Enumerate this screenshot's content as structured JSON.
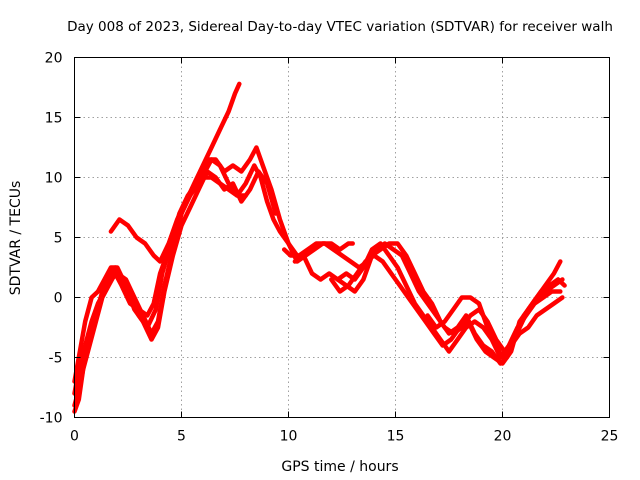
{
  "chart_data": {
    "type": "line",
    "title": "Day 008 of 2023, Sidereal Day-to-day VTEC variation (SDTVAR) for receiver walh",
    "xlabel": "GPS time / hours",
    "ylabel": "SDTVAR / TECUs",
    "xlim": [
      0,
      25
    ],
    "ylim": [
      -10,
      20
    ],
    "x_ticks": [
      0,
      5,
      10,
      15,
      20,
      25
    ],
    "y_ticks": [
      -10,
      -5,
      0,
      5,
      10,
      15,
      20
    ],
    "grid": true,
    "color": "#ff0000",
    "series": [
      {
        "name": "trace-1",
        "points": [
          [
            0.0,
            -9.5
          ],
          [
            0.2,
            -8.5
          ],
          [
            0.4,
            -6.0
          ],
          [
            0.7,
            -4.0
          ],
          [
            1.0,
            -2.0
          ],
          [
            1.3,
            0.0
          ],
          [
            1.6,
            1.0
          ],
          [
            1.9,
            2.0
          ],
          [
            2.2,
            1.0
          ],
          [
            2.6,
            -0.5
          ],
          [
            3.0,
            -1.0
          ],
          [
            3.4,
            -1.5
          ],
          [
            3.7,
            -0.5
          ],
          [
            4.0,
            2.0
          ],
          [
            4.4,
            4.0
          ],
          [
            4.8,
            6.0
          ],
          [
            5.2,
            8.0
          ],
          [
            5.6,
            9.5
          ],
          [
            6.0,
            11.0
          ],
          [
            6.4,
            12.5
          ],
          [
            6.8,
            14.0
          ],
          [
            7.2,
            15.5
          ],
          [
            7.5,
            17.0
          ],
          [
            7.7,
            17.8
          ]
        ]
      },
      {
        "name": "trace-2",
        "points": [
          [
            0.0,
            -9.0
          ],
          [
            0.3,
            -7.0
          ],
          [
            0.6,
            -4.0
          ],
          [
            1.0,
            -1.5
          ],
          [
            1.3,
            0.5
          ],
          [
            1.6,
            1.5
          ],
          [
            1.9,
            2.5
          ],
          [
            2.2,
            1.5
          ],
          [
            2.6,
            0.0
          ],
          [
            3.0,
            -1.5
          ],
          [
            3.4,
            -2.5
          ],
          [
            3.8,
            -1.0
          ],
          [
            4.1,
            2.0
          ],
          [
            4.5,
            4.5
          ],
          [
            4.9,
            7.0
          ],
          [
            5.3,
            8.5
          ],
          [
            5.7,
            9.5
          ],
          [
            6.1,
            10.5
          ],
          [
            6.4,
            11.5
          ],
          [
            6.8,
            11.0
          ],
          [
            7.2,
            9.5
          ],
          [
            7.6,
            8.5
          ],
          [
            8.0,
            9.5
          ],
          [
            8.4,
            11.0
          ],
          [
            8.7,
            10.0
          ],
          [
            9.0,
            8.0
          ],
          [
            9.3,
            6.5
          ],
          [
            9.6,
            5.5
          ],
          [
            10.0,
            4.5
          ],
          [
            10.4,
            3.0
          ],
          [
            10.8,
            3.5
          ],
          [
            11.2,
            4.0
          ],
          [
            11.6,
            4.5
          ],
          [
            12.0,
            4.5
          ],
          [
            12.4,
            4.0
          ],
          [
            12.8,
            4.5
          ],
          [
            13.0,
            4.5
          ]
        ]
      },
      {
        "name": "trace-3",
        "points": [
          [
            0.0,
            -8.0
          ],
          [
            0.2,
            -6.0
          ],
          [
            0.5,
            -4.0
          ],
          [
            0.8,
            -2.0
          ],
          [
            1.1,
            -0.5
          ],
          [
            1.4,
            0.5
          ],
          [
            1.7,
            1.5
          ],
          [
            2.0,
            2.0
          ],
          [
            2.4,
            1.5
          ],
          [
            2.8,
            0.0
          ],
          [
            3.2,
            -1.5
          ],
          [
            3.6,
            -3.0
          ],
          [
            3.9,
            -2.0
          ],
          [
            4.2,
            1.0
          ],
          [
            4.6,
            4.0
          ],
          [
            5.0,
            7.0
          ],
          [
            5.4,
            8.5
          ],
          [
            5.8,
            10.0
          ],
          [
            6.2,
            11.5
          ],
          [
            6.6,
            11.5
          ],
          [
            7.0,
            10.5
          ],
          [
            7.4,
            11.0
          ],
          [
            7.8,
            10.5
          ],
          [
            8.2,
            11.5
          ],
          [
            8.5,
            12.5
          ],
          [
            8.8,
            11.0
          ],
          [
            9.2,
            9.0
          ],
          [
            9.6,
            6.5
          ],
          [
            10.0,
            4.5
          ],
          [
            10.4,
            3.5
          ]
        ]
      },
      {
        "name": "trace-4",
        "points": [
          [
            0.0,
            -7.0
          ],
          [
            0.2,
            -5.0
          ],
          [
            0.5,
            -2.0
          ],
          [
            0.8,
            0.0
          ],
          [
            1.1,
            0.5
          ],
          [
            1.4,
            1.5
          ],
          [
            1.7,
            2.5
          ],
          [
            2.0,
            2.5
          ],
          [
            2.4,
            1.0
          ],
          [
            2.8,
            -1.0
          ],
          [
            3.2,
            -2.0
          ],
          [
            3.6,
            -3.5
          ],
          [
            3.9,
            -2.5
          ],
          [
            4.2,
            0.5
          ],
          [
            4.6,
            3.5
          ],
          [
            5.0,
            6.0
          ],
          [
            5.4,
            7.5
          ],
          [
            5.8,
            9.0
          ],
          [
            6.2,
            10.5
          ],
          [
            6.6,
            10.0
          ],
          [
            7.0,
            9.0
          ],
          [
            7.4,
            9.5
          ],
          [
            7.8,
            8.0
          ],
          [
            8.2,
            9.0
          ],
          [
            8.6,
            10.5
          ],
          [
            9.0,
            9.5
          ],
          [
            9.4,
            7.0
          ]
        ]
      },
      {
        "name": "trace-5",
        "points": [
          [
            1.7,
            5.5
          ],
          [
            2.1,
            6.5
          ],
          [
            2.5,
            6.0
          ],
          [
            2.9,
            5.0
          ],
          [
            3.3,
            4.5
          ],
          [
            3.7,
            3.5
          ],
          [
            4.0,
            3.0
          ],
          [
            4.4,
            4.5
          ],
          [
            4.8,
            6.5
          ],
          [
            5.2,
            8.0
          ],
          [
            5.6,
            9.0
          ],
          [
            6.0,
            10.0
          ],
          [
            6.4,
            10.0
          ],
          [
            6.8,
            9.5
          ],
          [
            7.2,
            9.0
          ],
          [
            7.6,
            8.5
          ],
          [
            8.0,
            8.5
          ]
        ]
      },
      {
        "name": "trace-6",
        "points": [
          [
            9.8,
            4.0
          ],
          [
            10.1,
            3.5
          ],
          [
            10.5,
            3.5
          ],
          [
            10.9,
            4.0
          ],
          [
            11.3,
            4.5
          ],
          [
            11.7,
            4.5
          ],
          [
            12.1,
            4.0
          ],
          [
            12.5,
            3.5
          ],
          [
            12.9,
            3.0
          ],
          [
            13.3,
            2.5
          ],
          [
            13.7,
            3.0
          ],
          [
            14.1,
            4.0
          ],
          [
            14.5,
            4.5
          ],
          [
            14.9,
            4.0
          ],
          [
            15.3,
            3.5
          ],
          [
            15.7,
            2.0
          ],
          [
            16.1,
            0.5
          ],
          [
            16.5,
            -0.5
          ],
          [
            16.9,
            -1.5
          ],
          [
            17.3,
            -2.5
          ],
          [
            17.7,
            -3.0
          ],
          [
            18.1,
            -2.5
          ],
          [
            18.5,
            -1.5
          ],
          [
            18.9,
            -1.0
          ],
          [
            19.3,
            -2.0
          ],
          [
            19.7,
            -3.5
          ],
          [
            20.1,
            -4.5
          ],
          [
            20.4,
            -4.0
          ],
          [
            20.8,
            -2.5
          ],
          [
            21.2,
            -1.0
          ],
          [
            21.6,
            0.0
          ],
          [
            22.0,
            1.0
          ],
          [
            22.4,
            2.0
          ],
          [
            22.7,
            3.0
          ]
        ]
      },
      {
        "name": "trace-7",
        "points": [
          [
            10.3,
            3.0
          ],
          [
            10.7,
            3.5
          ],
          [
            11.1,
            2.0
          ],
          [
            11.5,
            1.5
          ],
          [
            11.9,
            2.0
          ],
          [
            12.3,
            1.5
          ],
          [
            12.7,
            1.0
          ],
          [
            13.1,
            0.5
          ],
          [
            13.5,
            1.5
          ],
          [
            13.9,
            3.5
          ],
          [
            14.3,
            4.0
          ],
          [
            14.7,
            4.5
          ],
          [
            15.1,
            4.5
          ],
          [
            15.5,
            3.5
          ],
          [
            15.9,
            2.0
          ],
          [
            16.3,
            0.5
          ],
          [
            16.7,
            -0.5
          ],
          [
            17.1,
            -2.0
          ],
          [
            17.5,
            -3.0
          ],
          [
            17.9,
            -2.5
          ],
          [
            18.3,
            -1.5
          ],
          [
            18.7,
            -3.0
          ],
          [
            19.1,
            -4.0
          ],
          [
            19.5,
            -4.5
          ],
          [
            19.9,
            -5.5
          ],
          [
            20.2,
            -5.0
          ],
          [
            20.6,
            -3.0
          ],
          [
            21.0,
            -1.5
          ],
          [
            21.4,
            -0.5
          ],
          [
            21.8,
            0.5
          ],
          [
            22.2,
            1.0
          ],
          [
            22.6,
            1.5
          ],
          [
            22.9,
            1.0
          ]
        ]
      },
      {
        "name": "trace-8",
        "points": [
          [
            12.0,
            1.5
          ],
          [
            12.4,
            0.5
          ],
          [
            12.8,
            1.0
          ],
          [
            13.2,
            2.0
          ],
          [
            13.6,
            3.0
          ],
          [
            14.0,
            3.5
          ],
          [
            14.4,
            3.0
          ],
          [
            14.8,
            2.0
          ],
          [
            15.2,
            1.0
          ],
          [
            15.6,
            0.0
          ],
          [
            16.0,
            -1.0
          ],
          [
            16.4,
            -2.0
          ],
          [
            16.8,
            -3.0
          ],
          [
            17.2,
            -4.0
          ],
          [
            17.6,
            -3.5
          ],
          [
            18.0,
            -2.5
          ],
          [
            18.4,
            -2.0
          ],
          [
            18.8,
            -3.5
          ],
          [
            19.2,
            -4.5
          ],
          [
            19.6,
            -5.0
          ],
          [
            20.0,
            -5.5
          ],
          [
            20.4,
            -4.5
          ],
          [
            20.8,
            -2.0
          ],
          [
            21.2,
            -1.0
          ],
          [
            21.6,
            0.0
          ],
          [
            22.0,
            0.5
          ],
          [
            22.4,
            1.0
          ],
          [
            22.8,
            1.5
          ]
        ]
      },
      {
        "name": "trace-9",
        "points": [
          [
            12.3,
            1.5
          ],
          [
            12.7,
            2.0
          ],
          [
            13.1,
            1.5
          ],
          [
            13.5,
            2.5
          ],
          [
            13.9,
            4.0
          ],
          [
            14.3,
            4.5
          ],
          [
            14.7,
            3.5
          ],
          [
            15.1,
            2.5
          ],
          [
            15.5,
            1.0
          ],
          [
            15.9,
            -0.5
          ],
          [
            16.3,
            -1.5
          ],
          [
            16.7,
            -2.5
          ],
          [
            17.1,
            -3.5
          ],
          [
            17.5,
            -4.5
          ],
          [
            17.9,
            -3.5
          ],
          [
            18.3,
            -2.5
          ],
          [
            18.7,
            -2.0
          ],
          [
            19.1,
            -2.5
          ],
          [
            19.5,
            -3.5
          ],
          [
            19.9,
            -5.0
          ],
          [
            20.3,
            -4.0
          ],
          [
            20.7,
            -2.5
          ],
          [
            21.1,
            -1.5
          ],
          [
            21.5,
            -0.5
          ],
          [
            21.9,
            0.0
          ],
          [
            22.3,
            0.5
          ],
          [
            22.7,
            0.5
          ]
        ]
      },
      {
        "name": "trace-10",
        "points": [
          [
            16.5,
            -1.5
          ],
          [
            16.9,
            -2.5
          ],
          [
            17.3,
            -2.0
          ],
          [
            17.7,
            -1.0
          ],
          [
            18.1,
            0.0
          ],
          [
            18.5,
            0.0
          ],
          [
            18.9,
            -0.5
          ],
          [
            19.3,
            -2.5
          ],
          [
            19.7,
            -4.0
          ],
          [
            20.0,
            -5.0
          ],
          [
            20.4,
            -4.0
          ],
          [
            20.8,
            -3.0
          ],
          [
            21.2,
            -2.5
          ],
          [
            21.6,
            -1.5
          ],
          [
            22.0,
            -1.0
          ],
          [
            22.4,
            -0.5
          ],
          [
            22.8,
            0.0
          ]
        ]
      }
    ]
  }
}
